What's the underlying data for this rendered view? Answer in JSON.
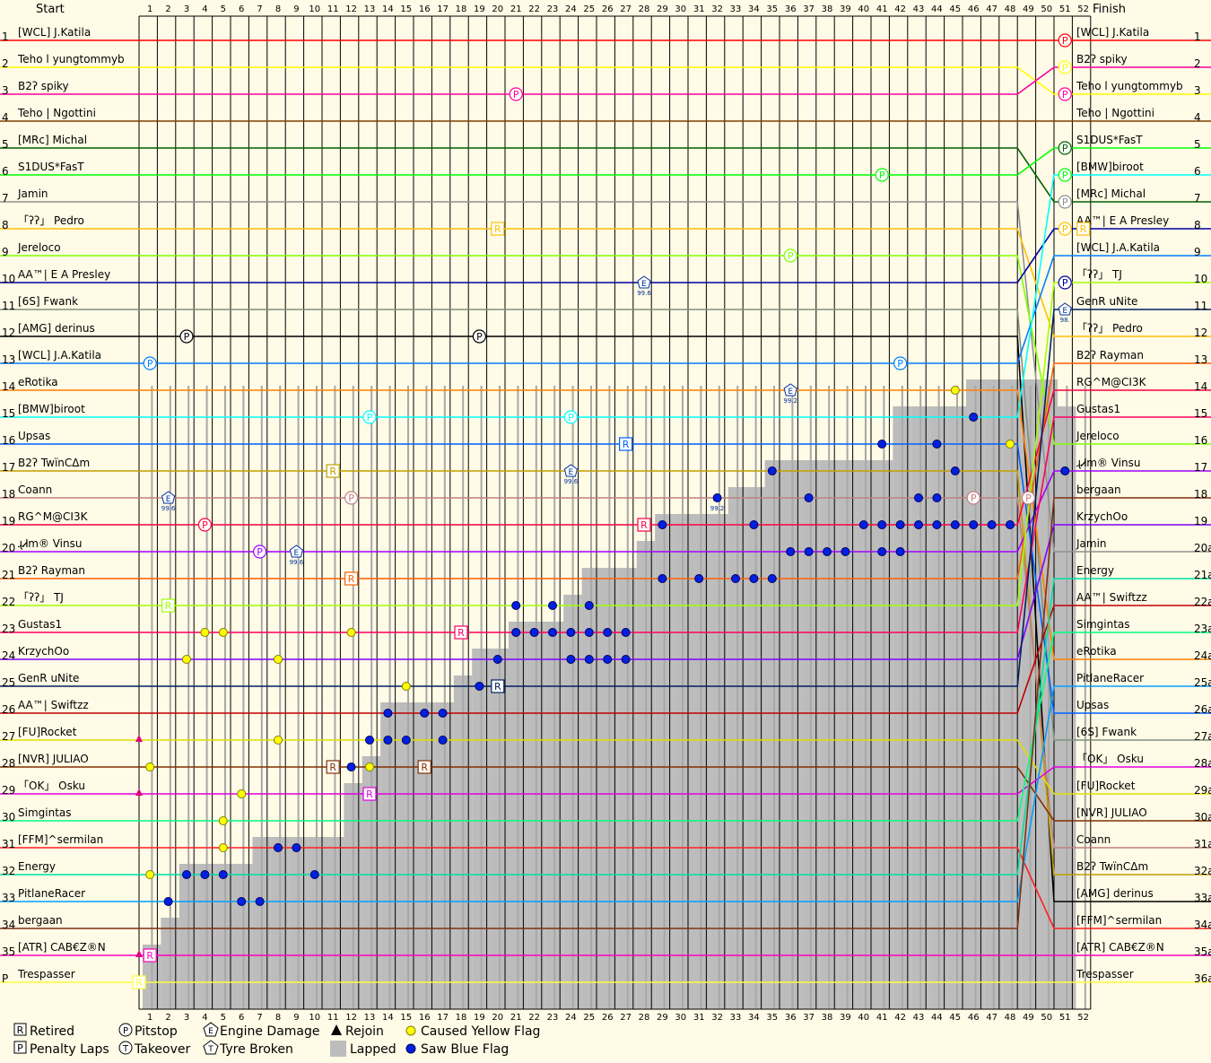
{
  "chart_data": {
    "type": "line",
    "header": {
      "start": "Start",
      "finish": "Finish"
    },
    "laps": 52,
    "start_positions": [
      "1",
      "2",
      "3",
      "4",
      "5",
      "6",
      "7",
      "8",
      "9",
      "10",
      "11",
      "12",
      "13",
      "14",
      "15",
      "16",
      "17",
      "18",
      "19",
      "20",
      "21",
      "22",
      "23",
      "24",
      "25",
      "26",
      "27",
      "28",
      "29",
      "30",
      "31",
      "32",
      "33",
      "34",
      "35",
      "P"
    ],
    "finish_positions": [
      "1",
      "2",
      "3",
      "4",
      "5",
      "6",
      "7",
      "8",
      "9",
      "10",
      "11",
      "12",
      "13",
      "14",
      "15",
      "16",
      "17",
      "18",
      "19",
      "20a",
      "21a",
      "22a",
      "23a",
      "24a",
      "25a",
      "26a",
      "27a",
      "28a",
      "29a",
      "30a",
      "31a",
      "32a",
      "33a",
      "34a",
      "35a",
      "36a"
    ],
    "start_grid": [
      "[WCL] J.Katila",
      "Teho l yungtommyb",
      "B2ʔ spiky",
      "Teho | Ngottini",
      "[MRc] Michal",
      "S1DUS*FasT",
      "Jamin",
      "「ʔʔ」 Pedro",
      "Jereloco",
      "AA™| E A Presley",
      "[6S] Fwank",
      "[AMG] derinus",
      "[WCL] J.A.Katila",
      "eRotika",
      "[BMW]biroot",
      "Upsas",
      "B2ʔ TwïnCΔm",
      "Coann",
      "RG^M@CI3K",
      "ɻᏗm® Vinsu",
      "B2ʔ Rayman",
      "「ʔʔ」 TJ",
      "Gustas1",
      "KrzychOo",
      "GenR uNite",
      "AA™| Swiftzz",
      "[FU]Rocket",
      "[NVR] JULIAO",
      "「OK」 Osku",
      "Simgintas",
      "[FFM]^sermilan",
      "Energy",
      "PitlaneRacer",
      "bergaan",
      "[ATR] CAB€Z®N",
      "Trespasser"
    ],
    "finish_order": [
      "[WCL] J.Katila",
      "B2ʔ spiky",
      "Teho l yungtommyb",
      "Teho | Ngottini",
      "S1DUS*FasT",
      "[BMW]biroot",
      "[MRc] Michal",
      "AA™| E A Presley",
      "[WCL] J.A.Katila",
      "「ʔʔ」 TJ",
      "GenR uNite",
      "「ʔʔ」 Pedro",
      "B2ʔ Rayman",
      "RG^M@CI3K",
      "Gustas1",
      "Jereloco",
      "ɻᏗm® Vinsu",
      "bergaan",
      "KrzychOo",
      "Jamin",
      "Energy",
      "AA™| Swiftzz",
      "Simgintas",
      "eRotika",
      "PitlaneRacer",
      "Upsas",
      "[6S] Fwank",
      "「OK」 Osku",
      "[FU]Rocket",
      "[NVR] JULIAO",
      "Coann",
      "B2ʔ TwïnCΔm",
      "[AMG] derinus",
      "[FFM]^sermilan",
      "[ATR] CAB€Z®N",
      "Trespasser"
    ],
    "driver_colors": {
      "[WCL] J.Katila": "#ff0000",
      "Teho l yungtommyb": "#ffff00",
      "B2ʔ spiky": "#ff00a0",
      "Teho | Ngottini": "#804000",
      "[MRc] Michal": "#006000",
      "S1DUS*FasT": "#00ff00",
      "Jamin": "#909090",
      "「ʔʔ」 Pedro": "#ffc000",
      "Jereloco": "#80ff00",
      "AA™| E A Presley": "#0000a0",
      "[6S] Fwank": "#809080",
      "[AMG] derinus": "#000000",
      "[WCL] J.A.Katila": "#0080ff",
      "eRotika": "#ff8000",
      "[BMW]biroot": "#00ffff",
      "Upsas": "#0060ff",
      "B2ʔ TwïnCΔm": "#c0a000",
      "Coann": "#c08080",
      "RG^M@CI3K": "#ff0040",
      "ɻᏗm® Vinsu": "#a000ff",
      "B2ʔ Rayman": "#ff6000",
      "「ʔʔ」 TJ": "#a0ff00",
      "Gustas1": "#ff0060",
      "KrzychOo": "#8000ff",
      "GenR uNite": "#002060",
      "AA™| Swiftzz": "#c00000",
      "[FU]Rocket": "#e0e000",
      "[NVR] JULIAO": "#803000",
      "「OK」 Osku": "#e000e0",
      "Simgintas": "#00ff80",
      "[FFM]^sermilan": "#ff2020",
      "Energy": "#00e0a0",
      "PitlaneRacer": "#00a0ff",
      "bergaan": "#803010",
      "[ATR] CAB€Z®N": "#ff00c0",
      "Trespasser": "#ffff40"
    },
    "lapped_steps": [
      {
        "lap": 1,
        "pos": 35
      },
      {
        "lap": 2,
        "pos": 34
      },
      {
        "lap": 3,
        "pos": 32
      },
      {
        "lap": 4,
        "pos": 32
      },
      {
        "lap": 5,
        "pos": 32
      },
      {
        "lap": 6,
        "pos": 32
      },
      {
        "lap": 7,
        "pos": 31
      },
      {
        "lap": 8,
        "pos": 31
      },
      {
        "lap": 9,
        "pos": 31
      },
      {
        "lap": 10,
        "pos": 31
      },
      {
        "lap": 11,
        "pos": 31
      },
      {
        "lap": 12,
        "pos": 29
      },
      {
        "lap": 13,
        "pos": 28
      },
      {
        "lap": 14,
        "pos": 26
      },
      {
        "lap": 15,
        "pos": 26
      },
      {
        "lap": 16,
        "pos": 26
      },
      {
        "lap": 17,
        "pos": 26
      },
      {
        "lap": 18,
        "pos": 25
      },
      {
        "lap": 19,
        "pos": 24
      },
      {
        "lap": 20,
        "pos": 24
      },
      {
        "lap": 21,
        "pos": 23
      },
      {
        "lap": 22,
        "pos": 23
      },
      {
        "lap": 23,
        "pos": 23
      },
      {
        "lap": 24,
        "pos": 22
      },
      {
        "lap": 25,
        "pos": 21
      },
      {
        "lap": 26,
        "pos": 21
      },
      {
        "lap": 27,
        "pos": 21
      },
      {
        "lap": 28,
        "pos": 20
      },
      {
        "lap": 29,
        "pos": 19
      },
      {
        "lap": 30,
        "pos": 19
      },
      {
        "lap": 31,
        "pos": 19
      },
      {
        "lap": 32,
        "pos": 19
      },
      {
        "lap": 33,
        "pos": 18
      },
      {
        "lap": 34,
        "pos": 18
      },
      {
        "lap": 35,
        "pos": 17
      },
      {
        "lap": 36,
        "pos": 17
      },
      {
        "lap": 37,
        "pos": 17
      },
      {
        "lap": 38,
        "pos": 17
      },
      {
        "lap": 39,
        "pos": 17
      },
      {
        "lap": 40,
        "pos": 17
      },
      {
        "lap": 41,
        "pos": 17
      },
      {
        "lap": 42,
        "pos": 15
      },
      {
        "lap": 43,
        "pos": 15
      },
      {
        "lap": 44,
        "pos": 15
      },
      {
        "lap": 45,
        "pos": 15
      },
      {
        "lap": 46,
        "pos": 14
      },
      {
        "lap": 47,
        "pos": 14
      },
      {
        "lap": 48,
        "pos": 14
      },
      {
        "lap": 49,
        "pos": 14
      },
      {
        "lap": 50,
        "pos": 14
      },
      {
        "lap": 51,
        "pos": 15
      }
    ],
    "markers": [
      {
        "type": "P",
        "lap": 51,
        "pos": 1
      },
      {
        "type": "P",
        "lap": 51,
        "pos": 2
      },
      {
        "type": "P",
        "lap": 21,
        "pos": 3
      },
      {
        "type": "P",
        "lap": 51,
        "pos": 3
      },
      {
        "type": "P",
        "lap": 51,
        "pos": 5
      },
      {
        "type": "P",
        "lap": 41,
        "pos": 6
      },
      {
        "type": "P",
        "lap": 51,
        "pos": 6
      },
      {
        "type": "P",
        "lap": 51,
        "pos": 7
      },
      {
        "type": "R",
        "lap": 20,
        "pos": 8
      },
      {
        "type": "P",
        "lap": 51,
        "pos": 8
      },
      {
        "type": "R",
        "lap": 52,
        "pos": 8
      },
      {
        "type": "P",
        "lap": 36,
        "pos": 9
      },
      {
        "type": "E",
        "lap": 28,
        "pos": 10
      },
      {
        "type": "P",
        "lap": 51,
        "pos": 10
      },
      {
        "type": "E",
        "lap": 51,
        "pos": 11
      },
      {
        "type": "P",
        "lap": 3,
        "pos": 12
      },
      {
        "type": "P",
        "lap": 19,
        "pos": 12
      },
      {
        "type": "P",
        "lap": 42,
        "pos": 13
      },
      {
        "type": "P",
        "lap": 1,
        "pos": 13
      },
      {
        "type": "E",
        "lap": 36,
        "pos": 14
      },
      {
        "type": "P",
        "lap": 13,
        "pos": 15
      },
      {
        "type": "P",
        "lap": 24,
        "pos": 15
      },
      {
        "type": "R",
        "lap": 27,
        "pos": 16
      },
      {
        "type": "R",
        "lap": 11,
        "pos": 17
      },
      {
        "type": "E",
        "lap": 24,
        "pos": 17
      },
      {
        "type": "P",
        "lap": 12,
        "pos": 18
      },
      {
        "type": "E",
        "lap": 2,
        "pos": 18
      },
      {
        "type": "P",
        "lap": 46,
        "pos": 18
      },
      {
        "type": "P",
        "lap": 49,
        "pos": 18
      },
      {
        "type": "P",
        "lap": 4,
        "pos": 19
      },
      {
        "type": "R",
        "lap": 28,
        "pos": 19
      },
      {
        "type": "P",
        "lap": 7,
        "pos": 20
      },
      {
        "type": "E",
        "lap": 9,
        "pos": 20
      },
      {
        "type": "R",
        "lap": 12,
        "pos": 21
      },
      {
        "type": "R",
        "lap": 2,
        "pos": 22
      },
      {
        "type": "R",
        "lap": 18,
        "pos": 23
      },
      {
        "type": "R",
        "lap": 20,
        "pos": 25
      },
      {
        "type": "R",
        "lap": 16,
        "pos": 28
      },
      {
        "type": "R",
        "lap": 11,
        "pos": 28
      },
      {
        "type": "R",
        "lap": 13,
        "pos": 29
      },
      {
        "type": "R",
        "lap": 1,
        "pos": 35
      },
      {
        "type": "R",
        "lap": 0,
        "pos": 36
      }
    ],
    "engine_labels": [
      {
        "text": "99.6",
        "lap": 28,
        "pos": 10
      },
      {
        "text": "99.2",
        "lap": 36,
        "pos": 14
      },
      {
        "text": "99.6",
        "lap": 24,
        "pos": 17
      },
      {
        "text": "99.6",
        "lap": 2,
        "pos": 18
      },
      {
        "text": "99.6",
        "lap": 9,
        "pos": 20
      },
      {
        "text": "99.2",
        "lap": 32,
        "pos": 18
      },
      {
        "text": "98.",
        "lap": 51,
        "pos": 11
      }
    ],
    "yellow_flags": [
      {
        "lap": 3,
        "pos": 24
      },
      {
        "lap": 4,
        "pos": 23
      },
      {
        "lap": 5,
        "pos": 23
      },
      {
        "lap": 8,
        "pos": 24
      },
      {
        "lap": 12,
        "pos": 23
      },
      {
        "lap": 15,
        "pos": 25
      },
      {
        "lap": 8,
        "pos": 27
      },
      {
        "lap": 5,
        "pos": 30
      },
      {
        "lap": 6,
        "pos": 29
      },
      {
        "lap": 5,
        "pos": 31
      },
      {
        "lap": 13,
        "pos": 28
      },
      {
        "lap": 1,
        "pos": 32
      },
      {
        "lap": 45,
        "pos": 14
      },
      {
        "lap": 46,
        "pos": 15
      },
      {
        "lap": 48,
        "pos": 16
      },
      {
        "lap": 51,
        "pos": 17
      },
      {
        "lap": 1,
        "pos": 28
      }
    ],
    "blue_flags": [
      {
        "lap": 2,
        "pos": 33
      },
      {
        "lap": 3,
        "pos": 32
      },
      {
        "lap": 4,
        "pos": 32
      },
      {
        "lap": 5,
        "pos": 32
      },
      {
        "lap": 6,
        "pos": 33
      },
      {
        "lap": 7,
        "pos": 33
      },
      {
        "lap": 8,
        "pos": 31
      },
      {
        "lap": 9,
        "pos": 31
      },
      {
        "lap": 10,
        "pos": 32
      },
      {
        "lap": 12,
        "pos": 28
      },
      {
        "lap": 13,
        "pos": 27
      },
      {
        "lap": 14,
        "pos": 26
      },
      {
        "lap": 14,
        "pos": 27
      },
      {
        "lap": 15,
        "pos": 27
      },
      {
        "lap": 16,
        "pos": 26
      },
      {
        "lap": 17,
        "pos": 26
      },
      {
        "lap": 17,
        "pos": 27
      },
      {
        "lap": 19,
        "pos": 25
      },
      {
        "lap": 20,
        "pos": 24
      },
      {
        "lap": 21,
        "pos": 22
      },
      {
        "lap": 21,
        "pos": 23
      },
      {
        "lap": 22,
        "pos": 23
      },
      {
        "lap": 23,
        "pos": 22
      },
      {
        "lap": 23,
        "pos": 23
      },
      {
        "lap": 24,
        "pos": 23
      },
      {
        "lap": 25,
        "pos": 23
      },
      {
        "lap": 26,
        "pos": 23
      },
      {
        "lap": 24,
        "pos": 24
      },
      {
        "lap": 25,
        "pos": 24
      },
      {
        "lap": 26,
        "pos": 24
      },
      {
        "lap": 27,
        "pos": 24
      },
      {
        "lap": 27,
        "pos": 23
      },
      {
        "lap": 25,
        "pos": 22
      },
      {
        "lap": 29,
        "pos": 19
      },
      {
        "lap": 29,
        "pos": 21
      },
      {
        "lap": 31,
        "pos": 21
      },
      {
        "lap": 32,
        "pos": 18
      },
      {
        "lap": 33,
        "pos": 21
      },
      {
        "lap": 34,
        "pos": 21
      },
      {
        "lap": 34,
        "pos": 19
      },
      {
        "lap": 35,
        "pos": 21
      },
      {
        "lap": 35,
        "pos": 17
      },
      {
        "lap": 36,
        "pos": 20
      },
      {
        "lap": 37,
        "pos": 18
      },
      {
        "lap": 37,
        "pos": 20
      },
      {
        "lap": 38,
        "pos": 20
      },
      {
        "lap": 39,
        "pos": 20
      },
      {
        "lap": 40,
        "pos": 19
      },
      {
        "lap": 41,
        "pos": 16
      },
      {
        "lap": 41,
        "pos": 19
      },
      {
        "lap": 41,
        "pos": 20
      },
      {
        "lap": 42,
        "pos": 19
      },
      {
        "lap": 42,
        "pos": 20
      },
      {
        "lap": 43,
        "pos": 18
      },
      {
        "lap": 43,
        "pos": 19
      },
      {
        "lap": 44,
        "pos": 16
      },
      {
        "lap": 44,
        "pos": 18
      },
      {
        "lap": 44,
        "pos": 19
      },
      {
        "lap": 45,
        "pos": 17
      },
      {
        "lap": 45,
        "pos": 19
      },
      {
        "lap": 46,
        "pos": 19
      },
      {
        "lap": 47,
        "pos": 19
      },
      {
        "lap": 48,
        "pos": 19
      },
      {
        "lap": 46,
        "pos": 15
      },
      {
        "lap": 51,
        "pos": 17
      }
    ],
    "legend": [
      {
        "icon": "R",
        "label": "Retired"
      },
      {
        "icon": "P-circle",
        "label": "Pitstop"
      },
      {
        "icon": "E-pentagon",
        "label": "Engine Damage"
      },
      {
        "icon": "triangle",
        "label": "Rejoin"
      },
      {
        "icon": "yellow-dot",
        "label": "Caused Yellow Flag"
      },
      {
        "icon": "P-square",
        "label": "Penalty Laps"
      },
      {
        "icon": "T-circle",
        "label": "Takeover"
      },
      {
        "icon": "T-pentagon",
        "label": "Tyre Broken"
      },
      {
        "icon": "grey-square",
        "label": "Lapped"
      },
      {
        "icon": "blue-dot",
        "label": "Saw Blue Flag"
      }
    ]
  }
}
